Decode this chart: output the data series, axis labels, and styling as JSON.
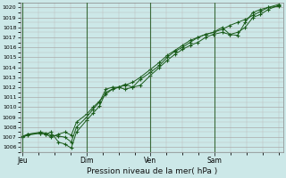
{
  "xlabel": "Pression niveau de la mer( hPa )",
  "background_color": "#cce8e8",
  "grid_color_major": "#aaaaaa",
  "grid_color_minor": "#cccccc",
  "line_color": "#1a5c1a",
  "ylim": [
    1005.5,
    1020.5
  ],
  "yticks": [
    1006,
    1007,
    1008,
    1009,
    1010,
    1011,
    1012,
    1013,
    1014,
    1015,
    1016,
    1017,
    1018,
    1019,
    1020
  ],
  "xtick_labels": [
    "Jeu",
    "Dim",
    "Ven",
    "Sam"
  ],
  "xtick_positions": [
    0,
    0.25,
    0.5,
    0.75
  ],
  "vline_positions": [
    0,
    0.25,
    0.5,
    0.75
  ],
  "series1_x": [
    0.0,
    0.02,
    0.07,
    0.09,
    0.11,
    0.14,
    0.165,
    0.19,
    0.21,
    0.25,
    0.275,
    0.3,
    0.325,
    0.35,
    0.375,
    0.4,
    0.43,
    0.46,
    0.5,
    0.535,
    0.565,
    0.595,
    0.625,
    0.655,
    0.685,
    0.715,
    0.745,
    0.78,
    0.81,
    0.84,
    0.87,
    0.9,
    0.93,
    0.96,
    1.0
  ],
  "series1_y": [
    1007.0,
    1007.2,
    1007.4,
    1007.3,
    1007.5,
    1006.5,
    1006.3,
    1005.9,
    1007.5,
    1008.7,
    1009.4,
    1010.1,
    1011.5,
    1011.8,
    1012.0,
    1011.8,
    1012.0,
    1012.2,
    1013.2,
    1014.0,
    1014.7,
    1015.3,
    1015.8,
    1016.2,
    1016.5,
    1017.0,
    1017.3,
    1017.5,
    1017.3,
    1017.5,
    1018.0,
    1019.0,
    1019.3,
    1019.8,
    1020.2
  ],
  "series2_x": [
    0.0,
    0.02,
    0.07,
    0.09,
    0.11,
    0.14,
    0.165,
    0.19,
    0.21,
    0.25,
    0.275,
    0.3,
    0.325,
    0.35,
    0.375,
    0.4,
    0.43,
    0.46,
    0.5,
    0.535,
    0.565,
    0.595,
    0.625,
    0.655,
    0.685,
    0.715,
    0.745,
    0.78,
    0.81,
    0.84,
    0.87,
    0.9,
    0.93,
    0.96,
    1.0
  ],
  "series2_y": [
    1007.0,
    1007.3,
    1007.4,
    1007.3,
    1007.0,
    1007.3,
    1007.5,
    1007.2,
    1008.5,
    1009.3,
    1010.0,
    1010.6,
    1011.3,
    1011.8,
    1012.0,
    1012.2,
    1012.5,
    1013.0,
    1013.8,
    1014.5,
    1015.2,
    1015.7,
    1016.2,
    1016.7,
    1017.0,
    1017.3,
    1017.5,
    1017.8,
    1018.2,
    1018.5,
    1018.8,
    1019.2,
    1019.6,
    1020.0,
    1020.3
  ],
  "series3_x": [
    0.0,
    0.02,
    0.07,
    0.09,
    0.11,
    0.14,
    0.165,
    0.19,
    0.21,
    0.25,
    0.275,
    0.3,
    0.325,
    0.35,
    0.375,
    0.4,
    0.43,
    0.46,
    0.5,
    0.535,
    0.565,
    0.595,
    0.625,
    0.655,
    0.685,
    0.715,
    0.745,
    0.78,
    0.81,
    0.84,
    0.87,
    0.9,
    0.93,
    0.96,
    1.0
  ],
  "series3_y": [
    1007.1,
    1007.3,
    1007.5,
    1007.4,
    1007.2,
    1007.1,
    1007.0,
    1006.5,
    1008.0,
    1009.0,
    1009.8,
    1010.5,
    1011.8,
    1012.0,
    1012.0,
    1012.3,
    1012.0,
    1012.8,
    1013.5,
    1014.2,
    1015.0,
    1015.6,
    1016.0,
    1016.5,
    1017.0,
    1017.3,
    1017.5,
    1018.0,
    1017.3,
    1017.2,
    1018.5,
    1019.5,
    1019.8,
    1020.0,
    1020.1
  ]
}
